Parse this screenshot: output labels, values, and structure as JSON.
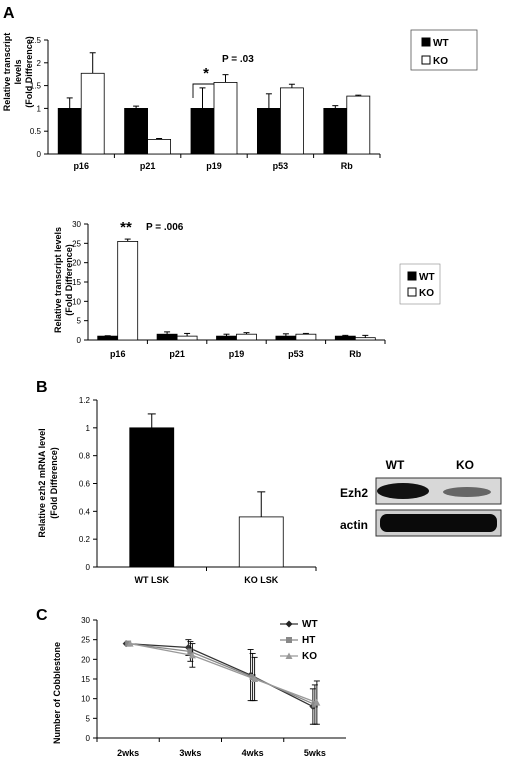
{
  "panels": {
    "a": {
      "letter": "A"
    },
    "b": {
      "letter": "B"
    },
    "c": {
      "letter": "C"
    }
  },
  "chart_data": [
    {
      "type": "bar",
      "panel": "A",
      "categories": [
        "p16",
        "p21",
        "p19",
        "p53",
        "Rb"
      ],
      "series": [
        {
          "name": "WT",
          "values": [
            1.0,
            1.0,
            1.0,
            1.0,
            1.0
          ],
          "errors": [
            0.23,
            0.05,
            0.45,
            0.32,
            0.06
          ],
          "color": "#000000"
        },
        {
          "name": "KO",
          "values": [
            1.77,
            0.32,
            1.57,
            1.45,
            1.27
          ],
          "errors": [
            0.45,
            0.02,
            0.17,
            0.08,
            0.02
          ],
          "color": "#ffffff"
        }
      ],
      "ylabel_lines": [
        "Relative transcript",
        "levels",
        "(Fold Difference)"
      ],
      "ylim": [
        0,
        2.5
      ],
      "yticks": [
        "0",
        "0.5",
        "1",
        "1.5",
        "2",
        "2.5"
      ],
      "annotations": {
        "star": "*",
        "pvalue": "P = .03"
      },
      "legend": "top-right",
      "grid": false
    },
    {
      "type": "bar",
      "panel": "A",
      "categories": [
        "p16",
        "p21",
        "p19",
        "p53",
        "Rb"
      ],
      "series": [
        {
          "name": "WT",
          "values": [
            1.0,
            1.5,
            1.0,
            1.0,
            1.0
          ],
          "errors": [
            0.1,
            0.6,
            0.5,
            0.6,
            0.2
          ],
          "color": "#000000"
        },
        {
          "name": "KO",
          "values": [
            25.5,
            1.0,
            1.5,
            1.5,
            0.6
          ],
          "errors": [
            0.6,
            0.7,
            0.4,
            0.2,
            0.6
          ],
          "color": "#ffffff"
        }
      ],
      "ylabel_lines": [
        "Relative transcript levels",
        "(Fold Difference)"
      ],
      "ylim": [
        0,
        30
      ],
      "yticks": [
        "0",
        "5",
        "10",
        "15",
        "20",
        "25",
        "30"
      ],
      "annotations": {
        "star": "**",
        "pvalue": "P = .006"
      },
      "legend": "right",
      "grid": false
    },
    {
      "type": "bar",
      "panel": "B",
      "categories": [
        "WT LSK",
        "KO LSK"
      ],
      "values": [
        1.0,
        0.36
      ],
      "errors": [
        0.1,
        0.18
      ],
      "colors": [
        "#000000",
        "#ffffff"
      ],
      "ylabel_lines": [
        "Relative ezh2 mRNA level",
        "(Fold Difference)"
      ],
      "ylim": [
        0,
        1.2
      ],
      "yticks": [
        "0",
        "0.2",
        "0.4",
        "0.6",
        "0.8",
        "1",
        "1.2"
      ],
      "grid": false
    },
    {
      "type": "line",
      "panel": "C",
      "x": [
        "2wks",
        "3wks",
        "4wks",
        "5wks"
      ],
      "series": [
        {
          "name": "WT",
          "values": [
            24,
            23,
            16,
            8
          ],
          "errors": [
            0,
            2,
            6.5,
            4.5
          ],
          "color": "#333333",
          "marker": "diamond"
        },
        {
          "name": "HT",
          "values": [
            24,
            22,
            15.5,
            8.5
          ],
          "errors": [
            0,
            2.5,
            6,
            5
          ],
          "color": "#888888",
          "marker": "square"
        },
        {
          "name": "KO",
          "values": [
            24,
            21,
            15,
            9
          ],
          "errors": [
            0,
            3,
            5.5,
            5.5
          ],
          "color": "#999999",
          "marker": "triangle"
        }
      ],
      "ylabel": "Number of Cobblestone",
      "ylim": [
        0,
        30
      ],
      "yticks": [
        "0",
        "5",
        "10",
        "15",
        "20",
        "25",
        "30"
      ],
      "legend": "top-right",
      "grid": false
    }
  ],
  "blot": {
    "header_wt": "WT",
    "header_ko": "KO",
    "row1": "Ezh2",
    "row2": "actin"
  }
}
